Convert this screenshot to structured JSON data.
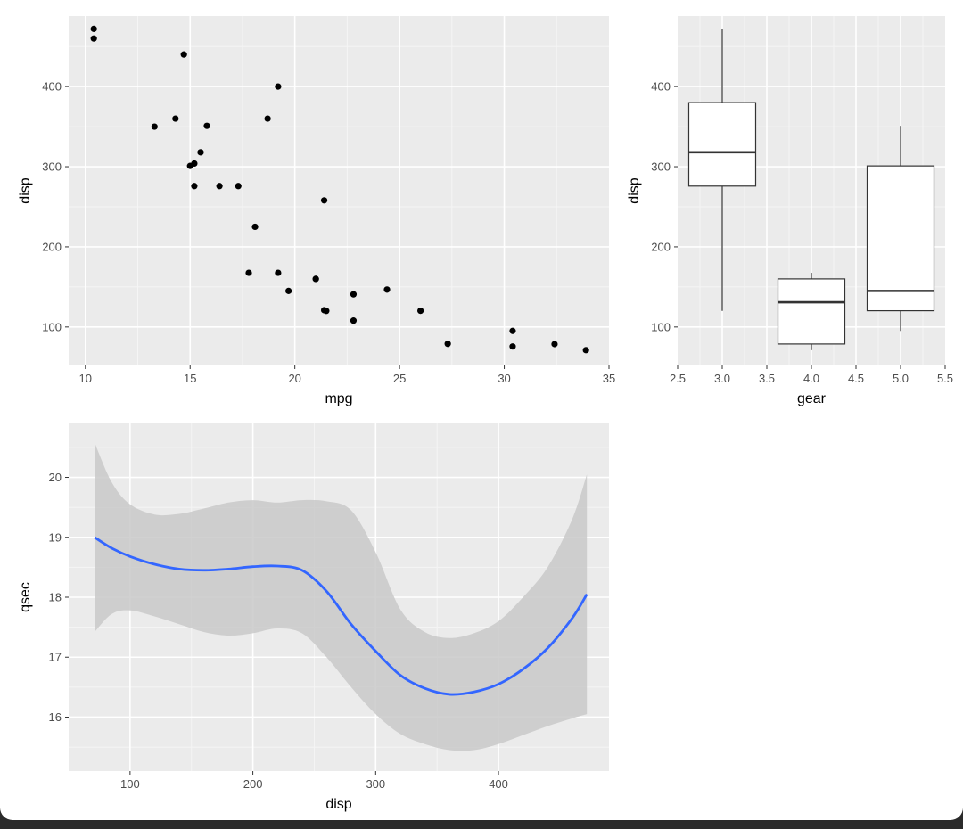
{
  "colors": {
    "panel_bg": "#ebebeb",
    "grid_major": "#ffffff",
    "grid_minor": "#f5f5f5",
    "tick_text": "#4d4d4d",
    "point": "#000000",
    "box_line": "#333333",
    "smooth_line": "#3366ff",
    "ribbon": "#c9c9c9"
  },
  "chart_data": [
    {
      "type": "scatter",
      "xlabel": "mpg",
      "ylabel": "disp",
      "xlim": [
        9.2,
        35
      ],
      "ylim": [
        52,
        488
      ],
      "x_ticks": [
        10,
        15,
        20,
        25,
        30,
        35
      ],
      "y_ticks": [
        100,
        200,
        300,
        400
      ],
      "x_tick_labels": [
        "10",
        "15",
        "20",
        "25",
        "30",
        "35"
      ],
      "y_tick_labels": [
        "100",
        "200",
        "300",
        "400"
      ],
      "points": [
        {
          "x": 21.0,
          "y": 160
        },
        {
          "x": 21.0,
          "y": 160
        },
        {
          "x": 22.8,
          "y": 108
        },
        {
          "x": 21.4,
          "y": 258
        },
        {
          "x": 18.7,
          "y": 360
        },
        {
          "x": 18.1,
          "y": 225
        },
        {
          "x": 14.3,
          "y": 360
        },
        {
          "x": 24.4,
          "y": 146.7
        },
        {
          "x": 22.8,
          "y": 140.8
        },
        {
          "x": 19.2,
          "y": 167.6
        },
        {
          "x": 17.8,
          "y": 167.6
        },
        {
          "x": 16.4,
          "y": 275.8
        },
        {
          "x": 17.3,
          "y": 275.8
        },
        {
          "x": 15.2,
          "y": 275.8
        },
        {
          "x": 10.4,
          "y": 472
        },
        {
          "x": 10.4,
          "y": 460
        },
        {
          "x": 14.7,
          "y": 440
        },
        {
          "x": 32.4,
          "y": 78.7
        },
        {
          "x": 30.4,
          "y": 75.7
        },
        {
          "x": 33.9,
          "y": 71.1
        },
        {
          "x": 21.5,
          "y": 120.1
        },
        {
          "x": 15.5,
          "y": 318
        },
        {
          "x": 15.2,
          "y": 304
        },
        {
          "x": 13.3,
          "y": 350
        },
        {
          "x": 19.2,
          "y": 400
        },
        {
          "x": 27.3,
          "y": 79
        },
        {
          "x": 26.0,
          "y": 120.3
        },
        {
          "x": 30.4,
          "y": 95.1
        },
        {
          "x": 15.8,
          "y": 351
        },
        {
          "x": 19.7,
          "y": 145
        },
        {
          "x": 15.0,
          "y": 301
        },
        {
          "x": 21.4,
          "y": 121
        }
      ]
    },
    {
      "type": "box",
      "xlabel": "gear",
      "ylabel": "disp",
      "xlim": [
        2.5,
        5.5
      ],
      "ylim": [
        52,
        488
      ],
      "x_ticks": [
        2.5,
        3.0,
        3.5,
        4.0,
        4.5,
        5.0,
        5.5
      ],
      "y_ticks": [
        100,
        200,
        300,
        400
      ],
      "x_tick_labels": [
        "2.5",
        "3.0",
        "3.5",
        "4.0",
        "4.5",
        "5.0",
        "5.5"
      ],
      "y_tick_labels": [
        "100",
        "200",
        "300",
        "400"
      ],
      "box_width": 0.75,
      "boxes": [
        {
          "x": 3.0,
          "min": 120.1,
          "q1": 275.8,
          "median": 318,
          "q3": 380,
          "max": 472
        },
        {
          "x": 4.0,
          "min": 71.1,
          "q1": 78.8,
          "median": 130.9,
          "q3": 160,
          "max": 167.6
        },
        {
          "x": 5.0,
          "min": 95.1,
          "q1": 120.3,
          "median": 145,
          "q3": 301,
          "max": 351
        }
      ]
    },
    {
      "type": "line",
      "xlabel": "disp",
      "ylabel": "qsec",
      "xlim": [
        50,
        490
      ],
      "ylim": [
        15.1,
        20.9
      ],
      "x_ticks": [
        100,
        200,
        300,
        400
      ],
      "y_ticks": [
        16,
        17,
        18,
        19,
        20
      ],
      "x_tick_labels": [
        "100",
        "200",
        "300",
        "400"
      ],
      "y_tick_labels": [
        "16",
        "17",
        "18",
        "19",
        "20"
      ],
      "series": [
        {
          "x": [
            71.1,
            85,
            100,
            120,
            140,
            160,
            180,
            200,
            220,
            240,
            260,
            280,
            300,
            320,
            340,
            360,
            380,
            400,
            420,
            440,
            460,
            472
          ],
          "y": [
            19.0,
            18.82,
            18.68,
            18.55,
            18.47,
            18.45,
            18.47,
            18.51,
            18.52,
            18.45,
            18.1,
            17.55,
            17.1,
            16.7,
            16.48,
            16.38,
            16.42,
            16.55,
            16.8,
            17.15,
            17.65,
            18.05
          ],
          "lower": [
            17.42,
            17.72,
            17.78,
            17.68,
            17.55,
            17.42,
            17.36,
            17.4,
            17.48,
            17.4,
            17.0,
            16.5,
            16.05,
            15.72,
            15.55,
            15.45,
            15.45,
            15.55,
            15.7,
            15.85,
            15.98,
            16.05
          ],
          "upper": [
            20.58,
            19.92,
            19.55,
            19.38,
            19.39,
            19.48,
            19.58,
            19.62,
            19.58,
            19.62,
            19.6,
            19.45,
            18.75,
            17.8,
            17.42,
            17.32,
            17.4,
            17.6,
            18.0,
            18.5,
            19.3,
            20.05
          ]
        }
      ]
    }
  ]
}
